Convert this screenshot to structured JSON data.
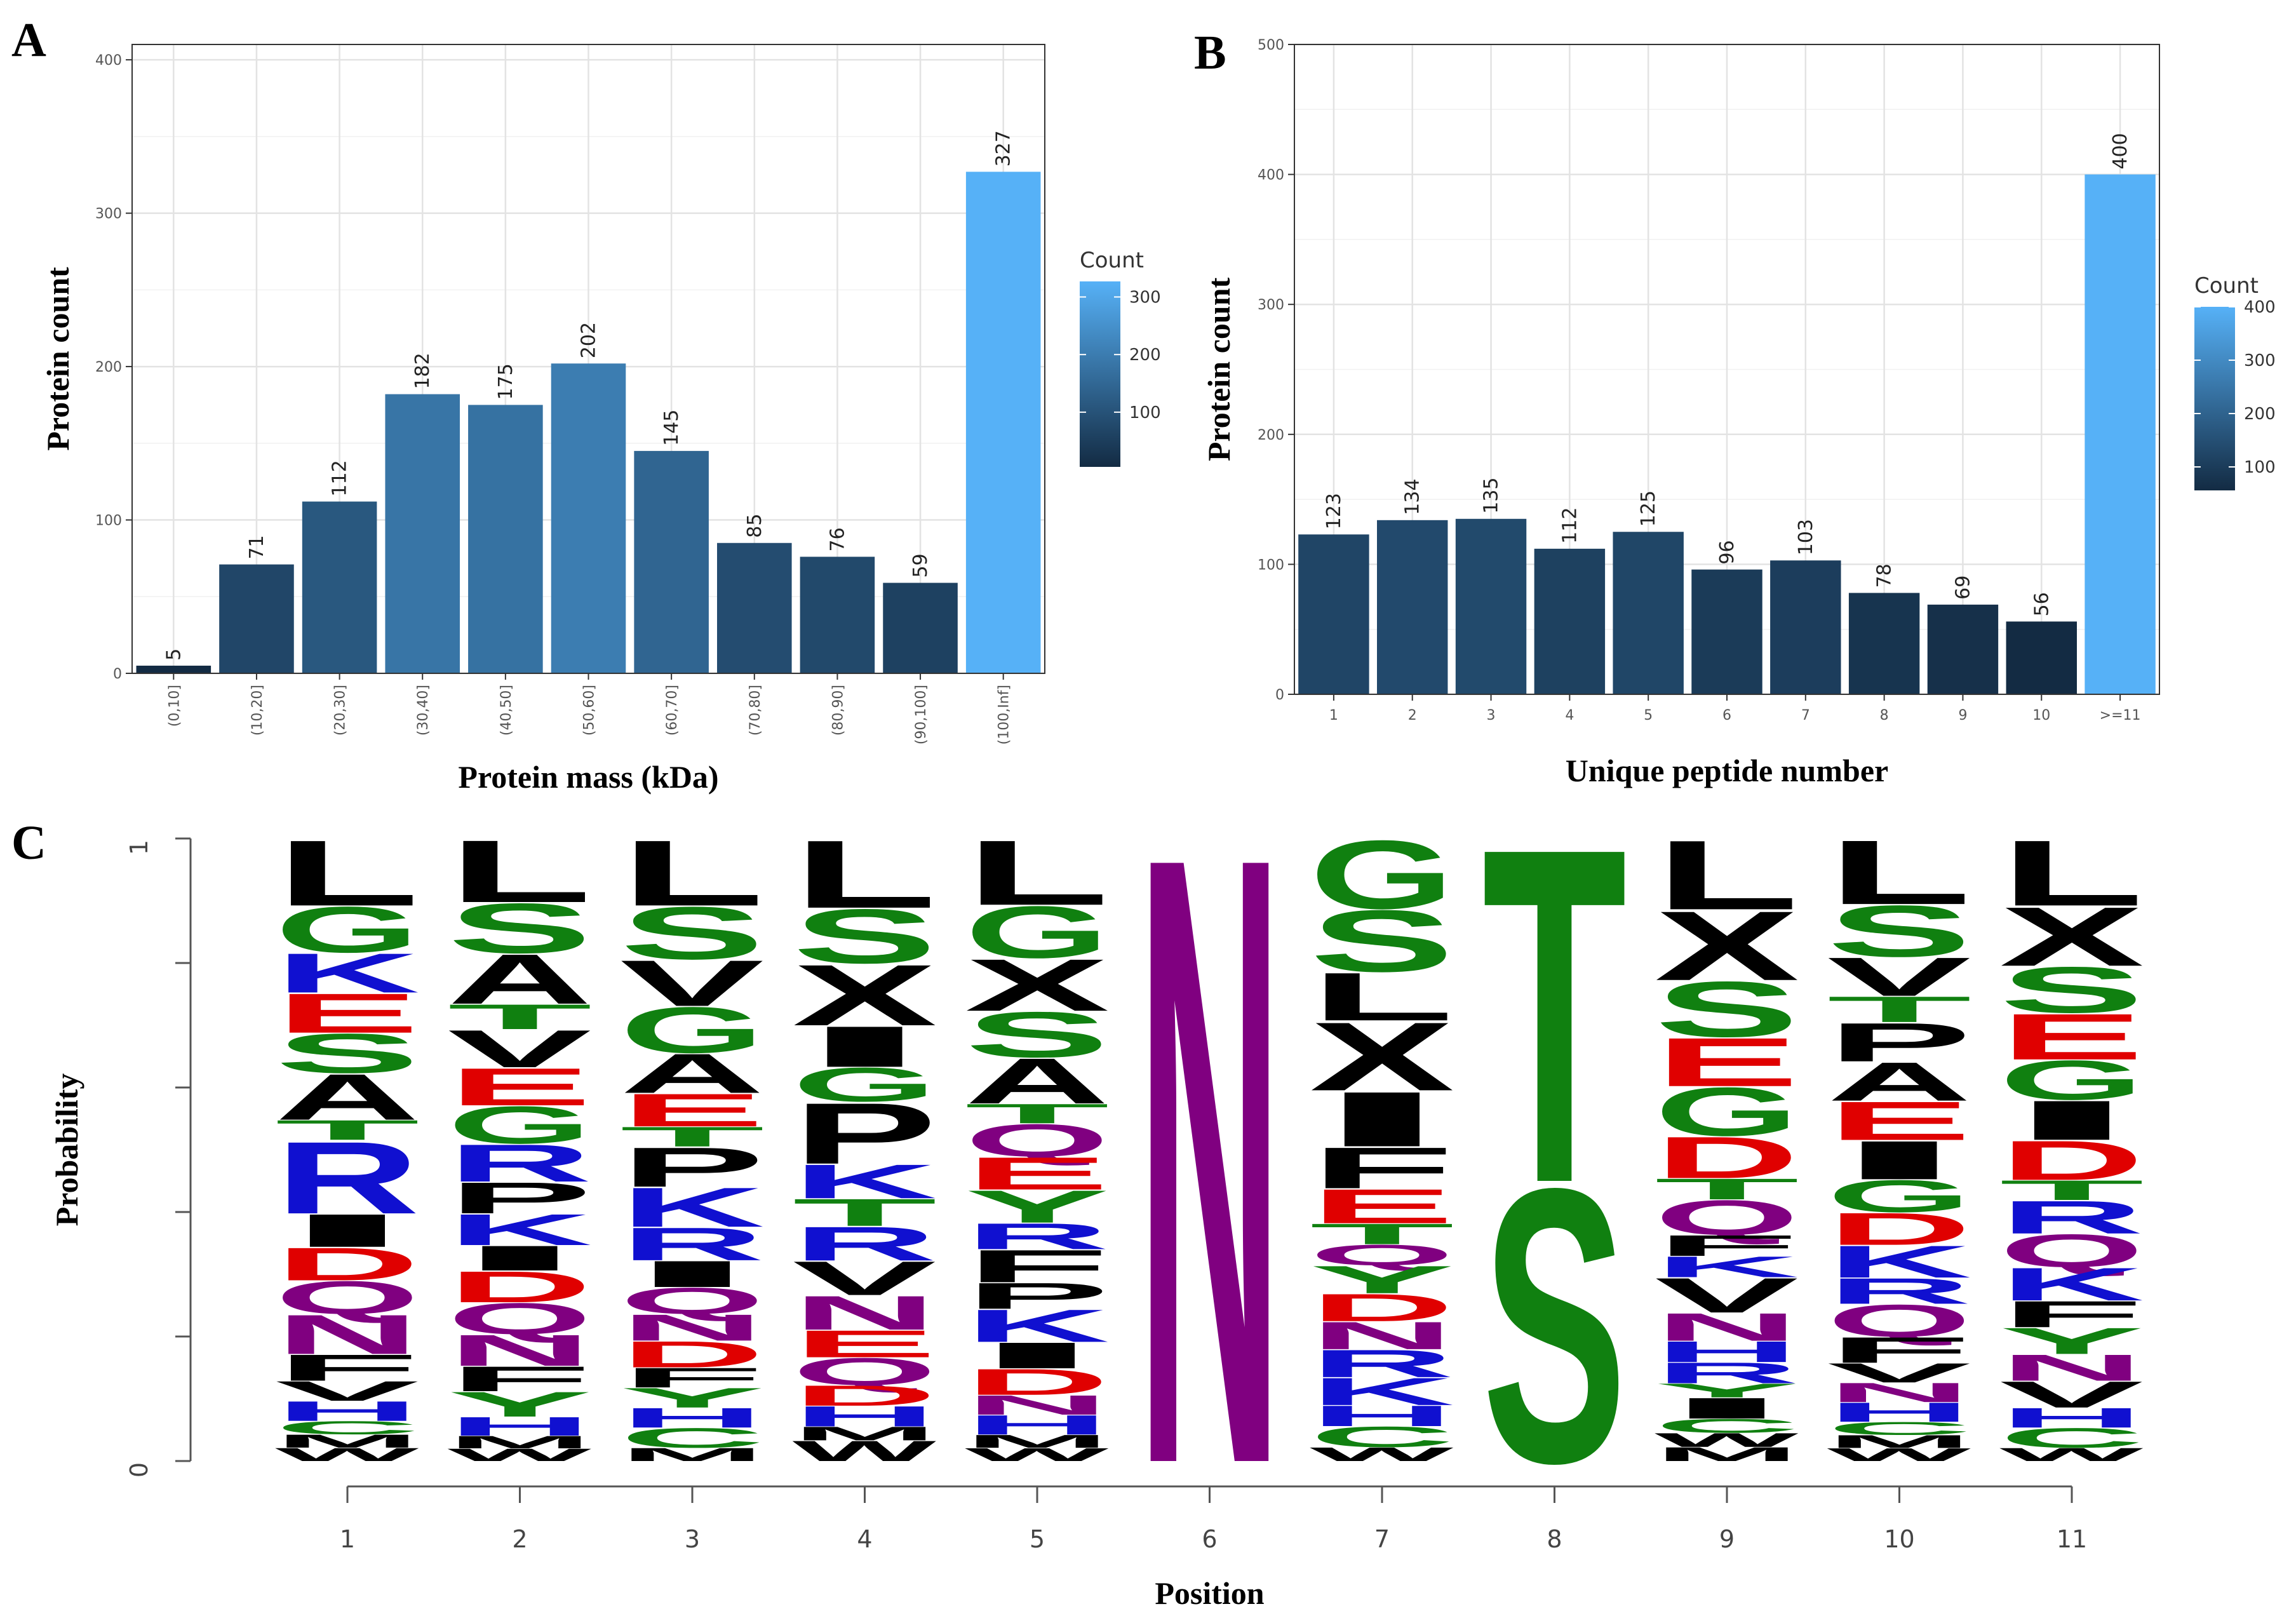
{
  "panels": {
    "a": {
      "letter": "A"
    },
    "b": {
      "letter": "B"
    },
    "c": {
      "letter": "C"
    }
  },
  "chart_data": [
    {
      "id": "A",
      "type": "bar",
      "categories": [
        "(0,10]",
        "(10,20]",
        "(20,30]",
        "(30,40]",
        "(40,50]",
        "(50,60]",
        "(60,70]",
        "(70,80]",
        "(80,90]",
        "(90,100]",
        "(100,Inf]"
      ],
      "values": [
        5,
        71,
        112,
        182,
        175,
        202,
        145,
        85,
        76,
        59,
        327
      ],
      "xlabel": "Protein mass (kDa)",
      "ylabel": "Protein count",
      "ylim": [
        0,
        410
      ],
      "yticks": [
        0,
        100,
        200,
        300,
        400
      ],
      "grid": true,
      "legend": {
        "title": "Count",
        "ticks": [
          100,
          200,
          300
        ],
        "range": [
          5,
          327
        ],
        "low_color": "#132b43",
        "high_color": "#56b1f7",
        "placement": "right"
      }
    },
    {
      "id": "B",
      "type": "bar",
      "categories": [
        "1",
        "2",
        "3",
        "4",
        "5",
        "6",
        "7",
        "8",
        "9",
        "10",
        ">=11"
      ],
      "values": [
        123,
        134,
        135,
        112,
        125,
        96,
        103,
        78,
        69,
        56,
        400
      ],
      "value_labels": [
        "123",
        "134",
        "135",
        "112",
        "125",
        "96",
        "103",
        "78",
        "69",
        "56",
        "400"
      ],
      "xlabel": "Unique peptide number",
      "ylabel": "Protein count",
      "ylim": [
        0,
        500
      ],
      "yticks": [
        0,
        100,
        200,
        300,
        400,
        500
      ],
      "grid": true,
      "legend": {
        "title": "Count",
        "ticks": [
          100,
          200,
          300,
          400
        ],
        "range": [
          56,
          400
        ],
        "low_color": "#132b43",
        "high_color": "#56b1f7",
        "placement": "right"
      }
    },
    {
      "id": "C",
      "type": "sequence-logo",
      "xlabel": "Position",
      "ylabel": "Probability",
      "ylim": [
        0,
        1
      ],
      "ytick_labels": [
        "0",
        "1"
      ],
      "positions": [
        "1",
        "2",
        "3",
        "4",
        "5",
        "6",
        "7",
        "8",
        "9",
        "10",
        "11"
      ],
      "columns": [
        [
          [
            "L",
            0.1
          ],
          [
            "G",
            0.07
          ],
          [
            "K",
            0.06
          ],
          [
            "E",
            0.06
          ],
          [
            "S",
            0.06
          ],
          [
            "A",
            0.07
          ],
          [
            "T",
            0.03
          ],
          [
            "R",
            0.11
          ],
          [
            "I",
            0.05
          ],
          [
            "D",
            0.05
          ],
          [
            "Q",
            0.05
          ],
          [
            "N",
            0.06
          ],
          [
            "F",
            0.04
          ],
          [
            "V",
            0.03
          ],
          [
            "H",
            0.03
          ],
          [
            "C",
            0.02
          ],
          [
            "M",
            0.02
          ],
          [
            "W",
            0.02
          ]
        ],
        [
          [
            "L",
            0.1
          ],
          [
            "S",
            0.08
          ],
          [
            "A",
            0.08
          ],
          [
            "T",
            0.04
          ],
          [
            "V",
            0.06
          ],
          [
            "E",
            0.06
          ],
          [
            "G",
            0.06
          ],
          [
            "R",
            0.06
          ],
          [
            "P",
            0.05
          ],
          [
            "K",
            0.05
          ],
          [
            "I",
            0.04
          ],
          [
            "D",
            0.05
          ],
          [
            "Q",
            0.05
          ],
          [
            "N",
            0.05
          ],
          [
            "F",
            0.04
          ],
          [
            "Y",
            0.04
          ],
          [
            "H",
            0.03
          ],
          [
            "M",
            0.02
          ],
          [
            "W",
            0.02
          ]
        ],
        [
          [
            "L",
            0.1
          ],
          [
            "S",
            0.08
          ],
          [
            "V",
            0.07
          ],
          [
            "G",
            0.07
          ],
          [
            "A",
            0.06
          ],
          [
            "E",
            0.05
          ],
          [
            "T",
            0.03
          ],
          [
            "P",
            0.06
          ],
          [
            "K",
            0.06
          ],
          [
            "R",
            0.05
          ],
          [
            "I",
            0.04
          ],
          [
            "Q",
            0.04
          ],
          [
            "N",
            0.04
          ],
          [
            "D",
            0.04
          ],
          [
            "F",
            0.03
          ],
          [
            "Y",
            0.03
          ],
          [
            "H",
            0.03
          ],
          [
            "C",
            0.03
          ],
          [
            "M",
            0.02
          ]
        ],
        [
          [
            "L",
            0.1
          ],
          [
            "S",
            0.08
          ],
          [
            "X",
            0.09
          ],
          [
            "I",
            0.06
          ],
          [
            "G",
            0.05
          ],
          [
            "P",
            0.09
          ],
          [
            "K",
            0.05
          ],
          [
            "T",
            0.04
          ],
          [
            "R",
            0.05
          ],
          [
            "V",
            0.05
          ],
          [
            "N",
            0.05
          ],
          [
            "E",
            0.04
          ],
          [
            "Q",
            0.04
          ],
          [
            "D",
            0.03
          ],
          [
            "H",
            0.03
          ],
          [
            "M",
            0.02
          ],
          [
            "W",
            0.03
          ]
        ],
        [
          [
            "L",
            0.1
          ],
          [
            "G",
            0.08
          ],
          [
            "X",
            0.08
          ],
          [
            "S",
            0.07
          ],
          [
            "A",
            0.07
          ],
          [
            "T",
            0.03
          ],
          [
            "Q",
            0.05
          ],
          [
            "E",
            0.05
          ],
          [
            "Y",
            0.05
          ],
          [
            "R",
            0.04
          ],
          [
            "F",
            0.05
          ],
          [
            "P",
            0.04
          ],
          [
            "K",
            0.05
          ],
          [
            "I",
            0.04
          ],
          [
            "D",
            0.04
          ],
          [
            "N",
            0.03
          ],
          [
            "H",
            0.03
          ],
          [
            "M",
            0.02
          ],
          [
            "W",
            0.02
          ]
        ],
        [
          [
            "N",
            1.0
          ]
        ],
        [
          [
            "G",
            0.1
          ],
          [
            "S",
            0.09
          ],
          [
            "L",
            0.07
          ],
          [
            "X",
            0.1
          ],
          [
            "I",
            0.08
          ],
          [
            "F",
            0.06
          ],
          [
            "E",
            0.05
          ],
          [
            "T",
            0.03
          ],
          [
            "Q",
            0.03
          ],
          [
            "Y",
            0.04
          ],
          [
            "D",
            0.04
          ],
          [
            "N",
            0.04
          ],
          [
            "R",
            0.04
          ],
          [
            "K",
            0.04
          ],
          [
            "H",
            0.03
          ],
          [
            "C",
            0.03
          ],
          [
            "W",
            0.02
          ]
        ],
        [
          [
            "T",
            0.55
          ],
          [
            "S",
            0.45
          ]
        ],
        [
          [
            "L",
            0.1
          ],
          [
            "X",
            0.1
          ],
          [
            "S",
            0.08
          ],
          [
            "E",
            0.07
          ],
          [
            "G",
            0.07
          ],
          [
            "D",
            0.06
          ],
          [
            "T",
            0.03
          ],
          [
            "Q",
            0.05
          ],
          [
            "F",
            0.03
          ],
          [
            "K",
            0.03
          ],
          [
            "V",
            0.05
          ],
          [
            "N",
            0.04
          ],
          [
            "H",
            0.03
          ],
          [
            "R",
            0.03
          ],
          [
            "Y",
            0.02
          ],
          [
            "I",
            0.03
          ],
          [
            "C",
            0.02
          ],
          [
            "W",
            0.02
          ],
          [
            "M",
            0.02
          ]
        ],
        [
          [
            "L",
            0.1
          ],
          [
            "S",
            0.08
          ],
          [
            "V",
            0.06
          ],
          [
            "T",
            0.04
          ],
          [
            "P",
            0.06
          ],
          [
            "A",
            0.06
          ],
          [
            "E",
            0.06
          ],
          [
            "I",
            0.06
          ],
          [
            "G",
            0.05
          ],
          [
            "D",
            0.05
          ],
          [
            "K",
            0.05
          ],
          [
            "R",
            0.04
          ],
          [
            "Q",
            0.05
          ],
          [
            "F",
            0.04
          ],
          [
            "V",
            0.03
          ],
          [
            "N",
            0.03
          ],
          [
            "H",
            0.03
          ],
          [
            "C",
            0.02
          ],
          [
            "M",
            0.02
          ],
          [
            "W",
            0.02
          ]
        ],
        [
          [
            "L",
            0.1
          ],
          [
            "X",
            0.09
          ],
          [
            "S",
            0.07
          ],
          [
            "E",
            0.07
          ],
          [
            "G",
            0.06
          ],
          [
            "I",
            0.06
          ],
          [
            "D",
            0.06
          ],
          [
            "T",
            0.03
          ],
          [
            "R",
            0.05
          ],
          [
            "Q",
            0.05
          ],
          [
            "K",
            0.05
          ],
          [
            "F",
            0.04
          ],
          [
            "Y",
            0.04
          ],
          [
            "N",
            0.04
          ],
          [
            "V",
            0.04
          ],
          [
            "H",
            0.03
          ],
          [
            "C",
            0.03
          ],
          [
            "W",
            0.02
          ]
        ]
      ],
      "residue_colors": {
        "L": "#000000",
        "I": "#000000",
        "P": "#000000",
        "F": "#000000",
        "A": "#000000",
        "V": "#000000",
        "M": "#000000",
        "W": "#000000",
        "X": "#000000",
        "G": "#108010",
        "S": "#108010",
        "T": "#108010",
        "Y": "#108010",
        "C": "#108010",
        "E": "#e00000",
        "D": "#e00000",
        "K": "#1010d0",
        "R": "#1010d0",
        "H": "#1010d0",
        "Q": "#800080",
        "N": "#800080"
      }
    }
  ]
}
